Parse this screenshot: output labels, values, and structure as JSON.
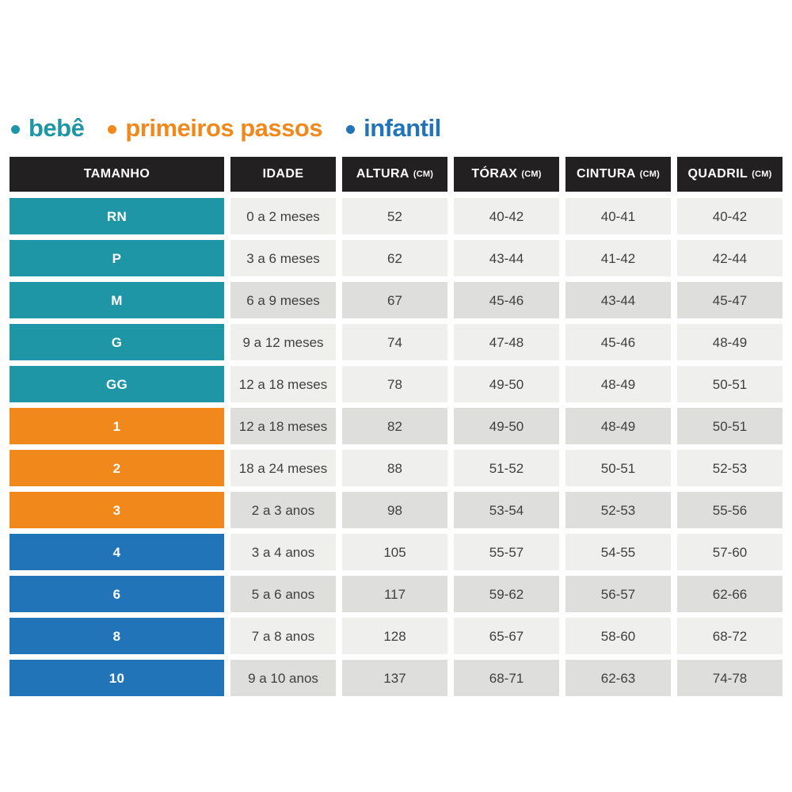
{
  "colors": {
    "bebe": "#1E96A5",
    "primeiros_passos": "#F1881C",
    "infantil": "#2174B8",
    "header_bg": "#232021",
    "header_text": "#ffffff",
    "row_light": "#EFEFED",
    "row_dark": "#DEDEDC",
    "cell_text": "#3F3F41",
    "size_text": "#ffffff"
  },
  "chart_data": {
    "type": "table",
    "title": "",
    "legend": [
      {
        "key": "bebe",
        "label": "bebê"
      },
      {
        "key": "primeiros_passos",
        "label": "primeiros passos"
      },
      {
        "key": "infantil",
        "label": "infantil"
      }
    ],
    "columns": [
      {
        "label": "TAMANHO",
        "unit": ""
      },
      {
        "label": "IDADE",
        "unit": ""
      },
      {
        "label": "ALTURA",
        "unit": "(CM)"
      },
      {
        "label": "TÓRAX",
        "unit": "(CM)"
      },
      {
        "label": "CINTURA",
        "unit": "(CM)"
      },
      {
        "label": "QUADRIL",
        "unit": "(CM)"
      }
    ],
    "rows": [
      {
        "size": "RN",
        "group": "bebe",
        "shaded": false,
        "idade": "0 a 2 meses",
        "altura": "52",
        "torax": "40-42",
        "cintura": "40-41",
        "quadril": "40-42"
      },
      {
        "size": "P",
        "group": "bebe",
        "shaded": false,
        "idade": "3 a 6 meses",
        "altura": "62",
        "torax": "43-44",
        "cintura": "41-42",
        "quadril": "42-44"
      },
      {
        "size": "M",
        "group": "bebe",
        "shaded": true,
        "idade": "6 a 9 meses",
        "altura": "67",
        "torax": "45-46",
        "cintura": "43-44",
        "quadril": "45-47"
      },
      {
        "size": "G",
        "group": "bebe",
        "shaded": false,
        "idade": "9 a 12 meses",
        "altura": "74",
        "torax": "47-48",
        "cintura": "45-46",
        "quadril": "48-49"
      },
      {
        "size": "GG",
        "group": "bebe",
        "shaded": false,
        "idade": "12 a 18 meses",
        "altura": "78",
        "torax": "49-50",
        "cintura": "48-49",
        "quadril": "50-51"
      },
      {
        "size": "1",
        "group": "primeiros_passos",
        "shaded": true,
        "idade": "12 a 18 meses",
        "altura": "82",
        "torax": "49-50",
        "cintura": "48-49",
        "quadril": "50-51"
      },
      {
        "size": "2",
        "group": "primeiros_passos",
        "shaded": false,
        "idade": "18 a 24 meses",
        "altura": "88",
        "torax": "51-52",
        "cintura": "50-51",
        "quadril": "52-53"
      },
      {
        "size": "3",
        "group": "primeiros_passos",
        "shaded": true,
        "idade": "2 a 3 anos",
        "altura": "98",
        "torax": "53-54",
        "cintura": "52-53",
        "quadril": "55-56"
      },
      {
        "size": "4",
        "group": "infantil",
        "shaded": false,
        "idade": "3 a 4 anos",
        "altura": "105",
        "torax": "55-57",
        "cintura": "54-55",
        "quadril": "57-60"
      },
      {
        "size": "6",
        "group": "infantil",
        "shaded": true,
        "idade": "5 a 6 anos",
        "altura": "117",
        "torax": "59-62",
        "cintura": "56-57",
        "quadril": "62-66"
      },
      {
        "size": "8",
        "group": "infantil",
        "shaded": false,
        "idade": "7 a 8 anos",
        "altura": "128",
        "torax": "65-67",
        "cintura": "58-60",
        "quadril": "68-72"
      },
      {
        "size": "10",
        "group": "infantil",
        "shaded": true,
        "idade": "9 a 10 anos",
        "altura": "137",
        "torax": "68-71",
        "cintura": "62-63",
        "quadril": "74-78"
      }
    ]
  }
}
